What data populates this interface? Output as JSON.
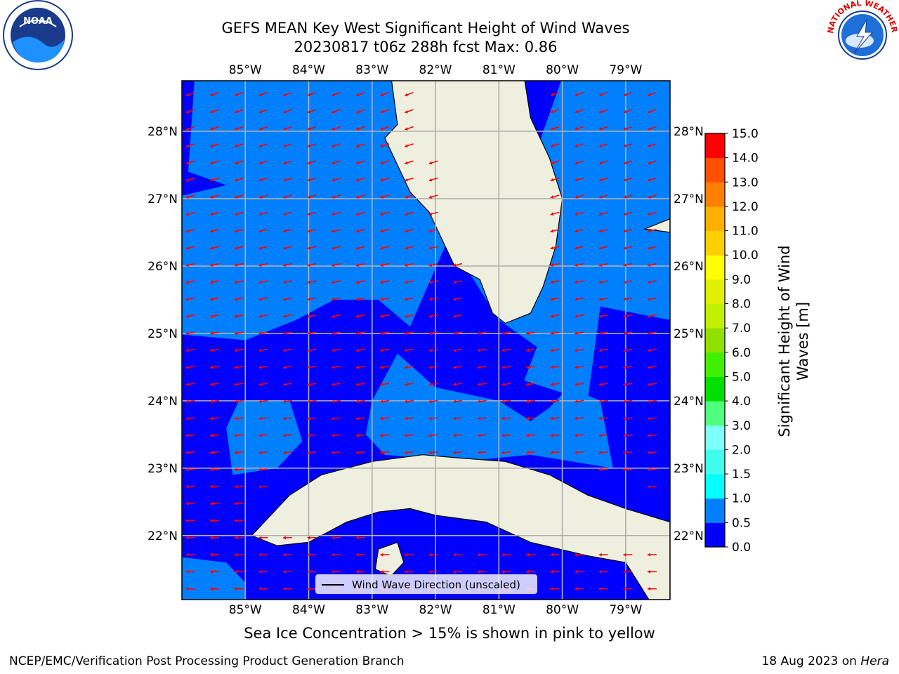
{
  "title_line1": "GEFS MEAN Key West Significant Height of Wind Waves",
  "title_line2": "20230817 t06z 288h fcst   Max: 0.86",
  "map": {
    "lon_ticks": [
      "85°W",
      "84°W",
      "83°W",
      "82°W",
      "81°W",
      "80°W",
      "79°W"
    ],
    "lat_ticks": [
      "28°N",
      "27°N",
      "26°N",
      "25°N",
      "24°N",
      "23°N",
      "22°N"
    ],
    "lon_range": [
      -86.0,
      -78.3
    ],
    "lat_range": [
      21.05,
      28.75
    ],
    "ocean_color": "#0080ff",
    "low_color": "#0000ff",
    "land_color": "#efefe0",
    "arrow_color": "#ff0000",
    "grid_color": "#b0b0b0"
  },
  "colorbar": {
    "title": "Significant Height of Wind Waves [m]",
    "levels": [
      "0.0",
      "0.5",
      "1.0",
      "1.5",
      "2.0",
      "3.0",
      "4.0",
      "5.0",
      "6.0",
      "7.0",
      "8.0",
      "9.0",
      "10.0",
      "11.0",
      "12.0",
      "13.0",
      "14.0",
      "15.0"
    ],
    "colors": [
      "#0000ff",
      "#0080ff",
      "#00ffff",
      "#40ffea",
      "#80ffff",
      "#50ff80",
      "#00e000",
      "#40f000",
      "#90e000",
      "#c0f000",
      "#e0f000",
      "#ffff00",
      "#ffd000",
      "#ffb000",
      "#ff8000",
      "#ff5000",
      "#ff0000"
    ]
  },
  "legend": {
    "label": "Wind Wave Direction (unscaled)"
  },
  "footnote": "Sea Ice Concentration > 15% is shown in pink to yellow",
  "footer": {
    "left": "NCEP/EMC/Verification Post Processing Product Generation Branch",
    "right_date": "18 Aug 2023 on ",
    "right_host": "Hera"
  },
  "logos": {
    "noaa_text": "NOAA",
    "nws_text": "NATIONAL WEATHER SERVICE"
  }
}
